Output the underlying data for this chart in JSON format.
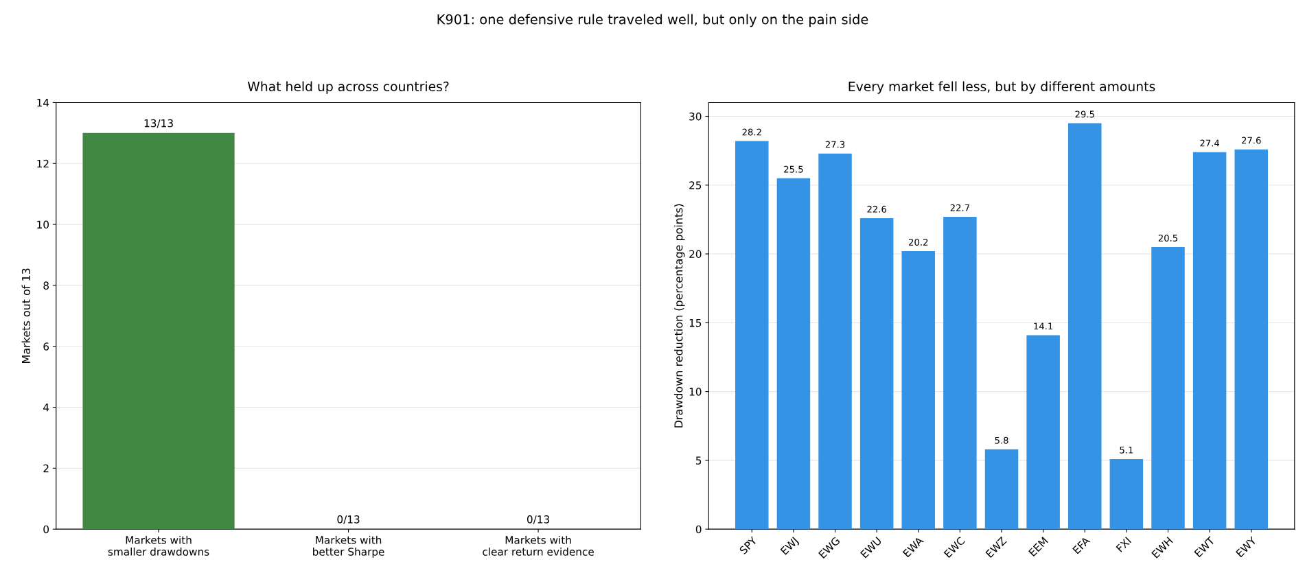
{
  "chart_data": [
    {
      "type": "bar",
      "title": "What held up across countries?",
      "annotations": [
        "K901: one defensive rule traveled well, but only on the pain side"
      ],
      "ylabel": "Markets out of 13",
      "categories": [
        "Markets with\nsmaller drawdowns",
        "Markets with\nbetter Sharpe",
        "Markets with\nclear return evidence"
      ],
      "values": [
        13,
        0,
        0
      ],
      "color": "#428743",
      "value_labels": [
        "13/13",
        "0/13",
        "0/13"
      ],
      "ylim": [
        0,
        14
      ],
      "yticks": [
        0,
        2,
        4,
        6,
        8,
        10,
        12,
        14
      ],
      "grid": "y"
    },
    {
      "type": "bar",
      "title": "Every market fell less, but by different amounts",
      "ylabel": "Drawdown reduction (percentage points)",
      "categories": [
        "SPY",
        "EWJ",
        "EWG",
        "EWU",
        "EWA",
        "EWC",
        "EWZ",
        "EEM",
        "EFA",
        "FXI",
        "EWH",
        "EWT",
        "EWY"
      ],
      "values": [
        28.2,
        25.5,
        27.3,
        22.6,
        20.2,
        22.7,
        5.8,
        14.1,
        29.5,
        5.1,
        20.5,
        27.4,
        27.6
      ],
      "color": "#3593e6",
      "data_labels": true,
      "ylim": [
        0,
        31
      ],
      "yticks": [
        0,
        5,
        10,
        15,
        20,
        25,
        30
      ],
      "grid": "y"
    }
  ]
}
